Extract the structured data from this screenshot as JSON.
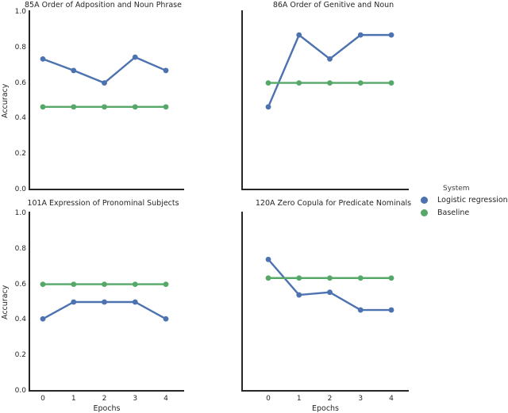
{
  "figure": {
    "background": "#ffffff"
  },
  "colors": {
    "logistic": "#4C72B0",
    "baseline": "#55A868",
    "axis": "#262626",
    "text": "#262626"
  },
  "axes": {
    "ylabel": "Accuracy",
    "xlabel": "Epochs",
    "yticks": [
      "1.0",
      "0.8",
      "0.6",
      "0.4",
      "0.2",
      "0.0"
    ],
    "xticks": [
      "0",
      "1",
      "2",
      "3",
      "4"
    ],
    "ylim": [
      0.0,
      1.0
    ]
  },
  "legend": {
    "title": "System",
    "items": [
      {
        "label": "Logistic regression",
        "color_key": "logistic"
      },
      {
        "label": "Baseline",
        "color_key": "baseline"
      }
    ]
  },
  "chart_data": [
    {
      "type": "line",
      "title": "85A Order of Adposition and Noun Phrase",
      "x": [
        0,
        1,
        2,
        3,
        4
      ],
      "xlabel": "Epochs",
      "ylabel": "Accuracy",
      "ylim": [
        0.0,
        1.0
      ],
      "series": [
        {
          "name": "Logistic regression",
          "color_key": "logistic",
          "values": [
            0.735,
            0.67,
            0.6,
            0.745,
            0.67
          ]
        },
        {
          "name": "Baseline",
          "color_key": "baseline",
          "values": [
            0.465,
            0.465,
            0.465,
            0.465,
            0.465
          ]
        }
      ]
    },
    {
      "type": "line",
      "title": "86A Order of Genitive and Noun",
      "x": [
        0,
        1,
        2,
        3,
        4
      ],
      "xlabel": "Epochs",
      "ylabel": "Accuracy",
      "ylim": [
        0.0,
        1.0
      ],
      "series": [
        {
          "name": "Logistic regression",
          "color_key": "logistic",
          "values": [
            0.465,
            0.87,
            0.735,
            0.87,
            0.87
          ]
        },
        {
          "name": "Baseline",
          "color_key": "baseline",
          "values": [
            0.6,
            0.6,
            0.6,
            0.6,
            0.6
          ]
        }
      ]
    },
    {
      "type": "line",
      "title": "101A Expression of Pronominal Subjects",
      "x": [
        0,
        1,
        2,
        3,
        4
      ],
      "xlabel": "Epochs",
      "ylabel": "Accuracy",
      "ylim": [
        0.0,
        1.0
      ],
      "series": [
        {
          "name": "Logistic regression",
          "color_key": "logistic",
          "values": [
            0.405,
            0.5,
            0.5,
            0.5,
            0.405
          ]
        },
        {
          "name": "Baseline",
          "color_key": "baseline",
          "values": [
            0.6,
            0.6,
            0.6,
            0.6,
            0.6
          ]
        }
      ]
    },
    {
      "type": "line",
      "title": "120A Zero Copula for Predicate Nominals",
      "x": [
        0,
        1,
        2,
        3,
        4
      ],
      "xlabel": "Epochs",
      "ylabel": "Accuracy",
      "ylim": [
        0.0,
        1.0
      ],
      "series": [
        {
          "name": "Logistic regression",
          "color_key": "logistic",
          "values": [
            0.74,
            0.54,
            0.555,
            0.455,
            0.455
          ]
        },
        {
          "name": "Baseline",
          "color_key": "baseline",
          "values": [
            0.635,
            0.635,
            0.635,
            0.635,
            0.635
          ]
        }
      ]
    }
  ]
}
